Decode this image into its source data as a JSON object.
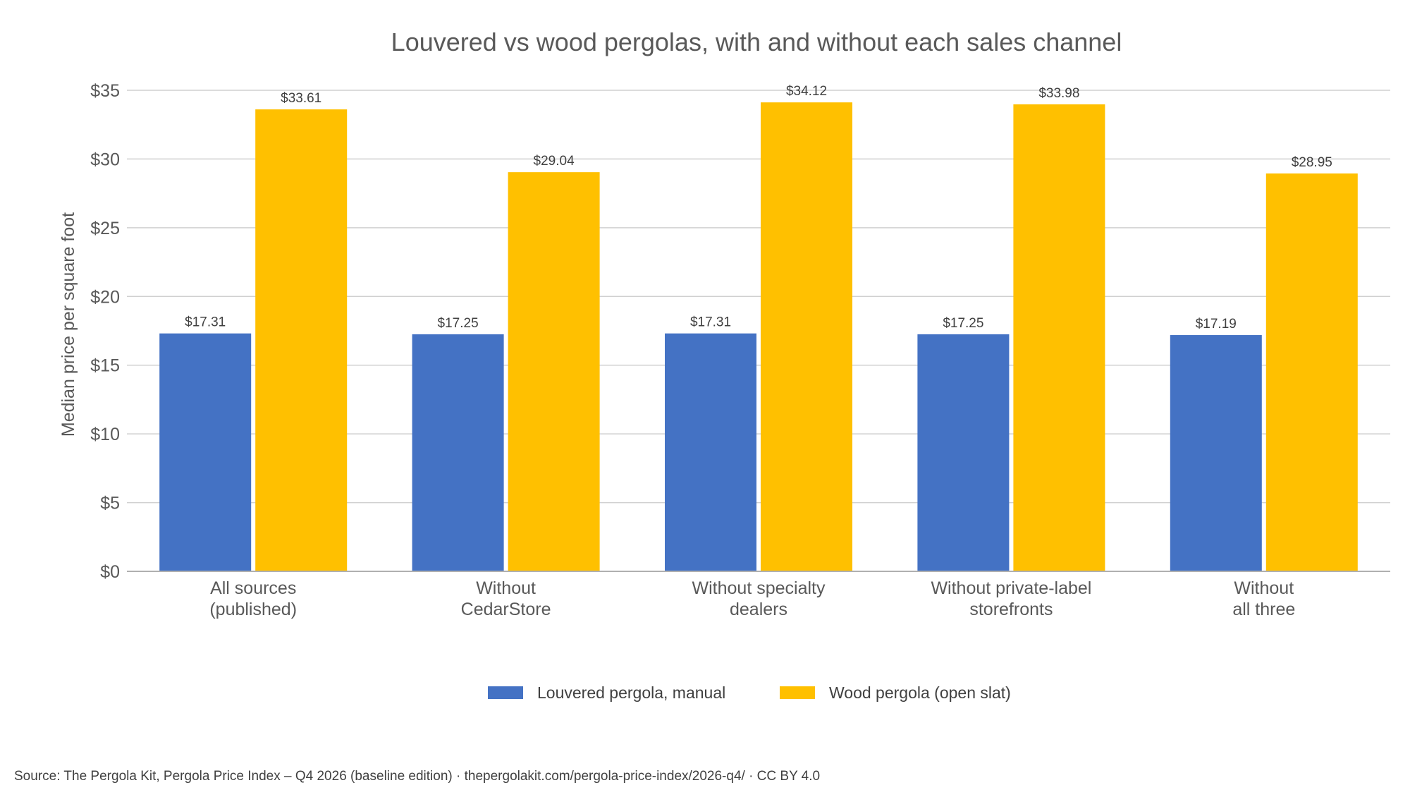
{
  "chart_data": {
    "type": "bar",
    "title": "Louvered vs wood pergolas, with and without each sales channel",
    "xlabel": "",
    "ylabel": "Median price per square foot",
    "ylim": [
      0,
      35
    ],
    "yticks": [
      "$0",
      "$5",
      "$10",
      "$15",
      "$20",
      "$25",
      "$30",
      "$35"
    ],
    "grid": true,
    "legend_position": "bottom",
    "categories": [
      [
        "All sources",
        "(published)"
      ],
      [
        "Without",
        "CedarStore"
      ],
      [
        "Without specialty",
        "dealers"
      ],
      [
        "Without private-label",
        "storefronts"
      ],
      [
        "Without",
        "all three"
      ]
    ],
    "series": [
      {
        "name": "Louvered pergola, manual",
        "color": "#4472C4",
        "values": [
          17.31,
          17.25,
          17.31,
          17.25,
          17.19
        ],
        "labels": [
          "$17.31",
          "$17.25",
          "$17.31",
          "$17.25",
          "$17.19"
        ]
      },
      {
        "name": "Wood pergola (open slat)",
        "color": "#FFC000",
        "values": [
          33.61,
          29.04,
          34.12,
          33.98,
          28.95
        ],
        "labels": [
          "$33.61",
          "$29.04",
          "$34.12",
          "$33.98",
          "$28.95"
        ]
      }
    ]
  },
  "source": "Source: The Pergola Kit, Pergola Price Index – Q4 2026 (baseline edition) · thepergolakit.com/pergola-price-index/2026-q4/ · CC BY 4.0"
}
